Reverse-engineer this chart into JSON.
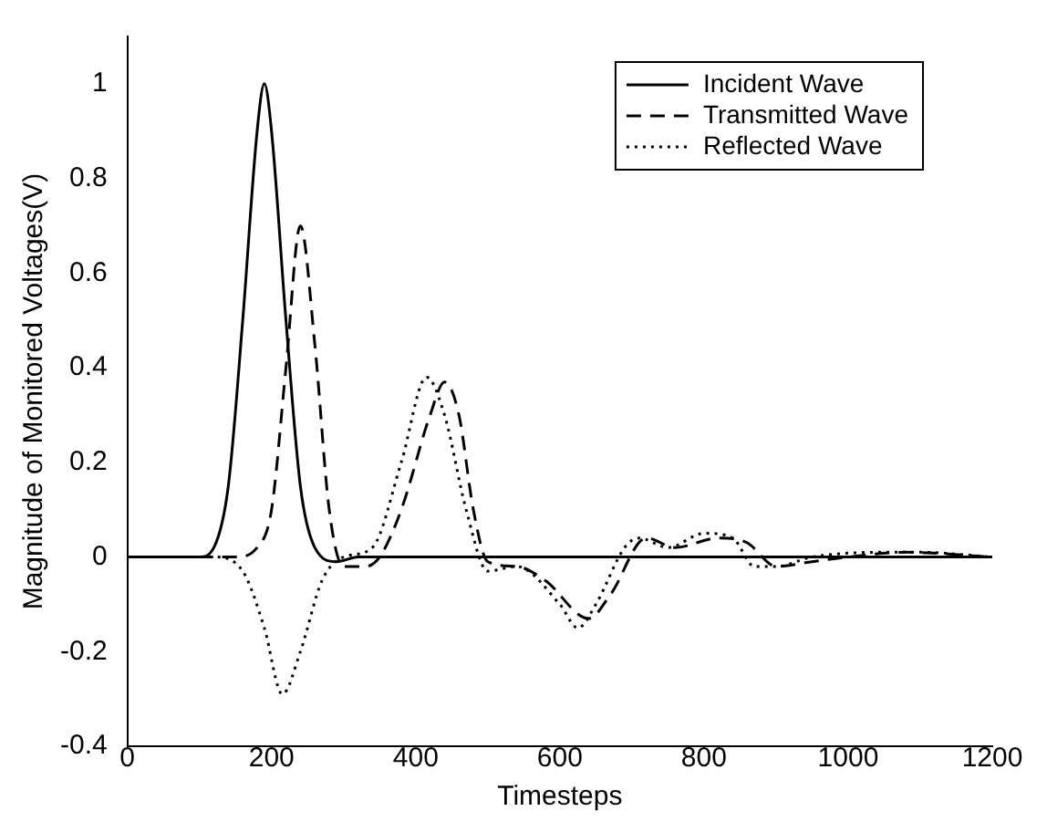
{
  "chart_data": {
    "type": "line",
    "xlabel": "Timesteps",
    "ylabel": "Magnitude of Monitored Voltages(V)",
    "xlim": [
      0,
      1200
    ],
    "xticks": [
      0,
      200,
      400,
      600,
      800,
      1000,
      1200
    ],
    "ylim": [
      -0.4,
      1.1
    ],
    "yticks": [
      -0.4,
      -0.2,
      0,
      0.2,
      0.4,
      0.6,
      0.8,
      1
    ],
    "grid": false,
    "legend": "top right",
    "marker": "none",
    "series": [
      {
        "name": "Incident Wave",
        "color": "#000000",
        "line_style": "solid",
        "x": [
          0,
          100,
          120,
          140,
          160,
          180,
          190,
          200,
          220,
          240,
          260,
          290,
          320,
          1200
        ],
        "values": [
          0,
          0,
          0.02,
          0.15,
          0.5,
          0.9,
          1,
          0.9,
          0.5,
          0.15,
          0.02,
          -0.01,
          0,
          0
        ]
      },
      {
        "name": "Transmitted Wave",
        "color": "#000000",
        "line_style": "dashed",
        "x": [
          0,
          150,
          180,
          200,
          220,
          240,
          260,
          280,
          300,
          330,
          350,
          380,
          420,
          440,
          460,
          480,
          500,
          540,
          580,
          640,
          670,
          720,
          760,
          820,
          860,
          900,
          950,
          1000,
          1080,
          1200
        ],
        "values": [
          0,
          0,
          0.02,
          0.1,
          0.4,
          0.7,
          0.45,
          0.1,
          -0.02,
          -0.02,
          0,
          0.1,
          0.3,
          0.37,
          0.3,
          0.1,
          -0.01,
          -0.02,
          -0.05,
          -0.13,
          -0.08,
          0.04,
          0.02,
          0.04,
          0.03,
          -0.02,
          -0.01,
          0,
          0.01,
          0
        ]
      },
      {
        "name": "Reflected Wave",
        "color": "#000000",
        "line_style": "dotted",
        "x": [
          0,
          120,
          160,
          190,
          215,
          240,
          270,
          300,
          340,
          380,
          415,
          440,
          470,
          500,
          540,
          600,
          625,
          650,
          690,
          710,
          750,
          800,
          840,
          870,
          900,
          950,
          1050,
          1100,
          1200
        ],
        "values": [
          0,
          0,
          -0.03,
          -0.15,
          -0.29,
          -0.2,
          -0.05,
          0,
          0.02,
          0.2,
          0.38,
          0.3,
          0.1,
          -0.03,
          -0.02,
          -0.1,
          -0.15,
          -0.1,
          0.02,
          0.04,
          0.02,
          0.05,
          0.04,
          -0.02,
          -0.02,
          0,
          0.01,
          0.01,
          0
        ]
      }
    ]
  }
}
